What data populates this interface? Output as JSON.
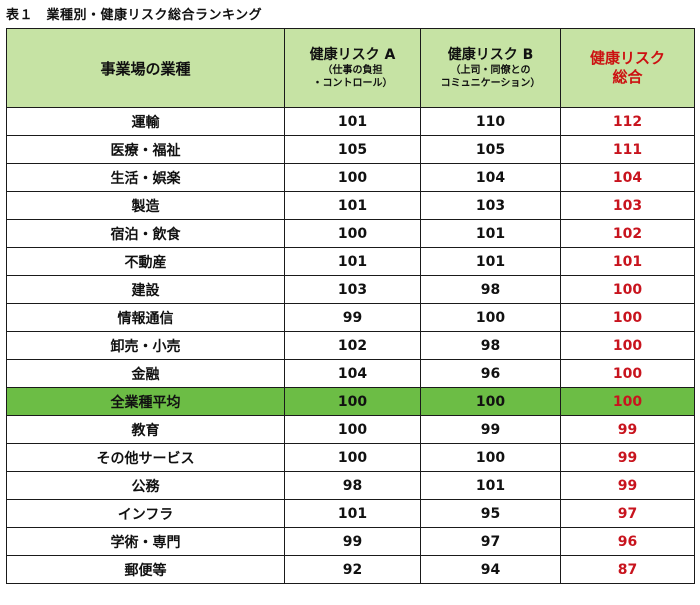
{
  "caption": "表１　業種別・健康リスク総合ランキング",
  "header": {
    "industry": "事業場の業種",
    "risk_a": "健康リスク A",
    "risk_a_sub1": "（仕事の負担",
    "risk_a_sub2": "・コントロール）",
    "risk_b": "健康リスク B",
    "risk_b_sub1": "（上司・同僚との",
    "risk_b_sub2": "コミュニケーション）",
    "total1": "健康リスク",
    "total2": "総合"
  },
  "rows": [
    {
      "industry": "運輸",
      "a": "101",
      "b": "110",
      "total": "112"
    },
    {
      "industry": "医療・福祉",
      "a": "105",
      "b": "105",
      "total": "111"
    },
    {
      "industry": "生活・娯楽",
      "a": "100",
      "b": "104",
      "total": "104"
    },
    {
      "industry": "製造",
      "a": "101",
      "b": "103",
      "total": "103"
    },
    {
      "industry": "宿泊・飲食",
      "a": "100",
      "b": "101",
      "total": "102"
    },
    {
      "industry": "不動産",
      "a": "101",
      "b": "101",
      "total": "101"
    },
    {
      "industry": "建設",
      "a": "103",
      "b": "98",
      "total": "100"
    },
    {
      "industry": "情報通信",
      "a": "99",
      "b": "100",
      "total": "100"
    },
    {
      "industry": "卸売・小売",
      "a": "102",
      "b": "98",
      "total": "100"
    },
    {
      "industry": "金融",
      "a": "104",
      "b": "96",
      "total": "100"
    },
    {
      "industry": "全業種平均",
      "a": "100",
      "b": "100",
      "total": "100"
    },
    {
      "industry": "教育",
      "a": "100",
      "b": "99",
      "total": "99"
    },
    {
      "industry": "その他サービス",
      "a": "100",
      "b": "100",
      "total": "99"
    },
    {
      "industry": "公務",
      "a": "98",
      "b": "101",
      "total": "99"
    },
    {
      "industry": "インフラ",
      "a": "101",
      "b": "95",
      "total": "97"
    },
    {
      "industry": "学術・専門",
      "a": "99",
      "b": "97",
      "total": "96"
    },
    {
      "industry": "郵便等",
      "a": "92",
      "b": "94",
      "total": "87"
    }
  ],
  "average_row_index": 10,
  "colors": {
    "header_bg": "#c6e3a4",
    "average_bg": "#6cbd45",
    "total_text": "#c8141e"
  }
}
